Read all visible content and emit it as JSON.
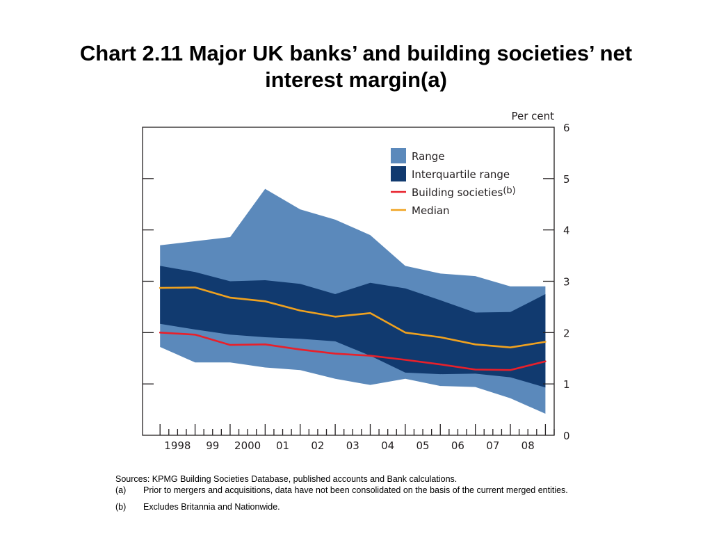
{
  "title_line1": "Chart 2.11  Major UK banks’ and building societies’ net",
  "title_line2": "interest margin(a)",
  "notes": {
    "sources": "Sources:  KPMG Building Societies Database, published accounts and Bank calculations.",
    "a_mark": "(a)",
    "a_text": "Prior to mergers and acquisitions, data have not been consolidated on the basis of the current merged entities.",
    "b_mark": "(b)",
    "b_text": "Excludes Britannia and Nationwide."
  },
  "chart_data": {
    "type": "area",
    "ylabel": "Per cent",
    "ylim": [
      0,
      6
    ],
    "yticks": [
      "0",
      "1",
      "2",
      "3",
      "4",
      "5",
      "6"
    ],
    "xlim": [
      1997.5,
      2009.25
    ],
    "x_tick_labels": [
      {
        "x": 1998,
        "label": "1998"
      },
      {
        "x": 1999,
        "label": "99"
      },
      {
        "x": 2000,
        "label": "2000"
      },
      {
        "x": 2001,
        "label": "01"
      },
      {
        "x": 2002,
        "label": "02"
      },
      {
        "x": 2003,
        "label": "03"
      },
      {
        "x": 2004,
        "label": "04"
      },
      {
        "x": 2005,
        "label": "05"
      },
      {
        "x": 2006,
        "label": "06"
      },
      {
        "x": 2007,
        "label": "07"
      },
      {
        "x": 2008,
        "label": "08"
      }
    ],
    "x": [
      1998.0,
      1999.0,
      2000.0,
      2001.0,
      2002.0,
      2003.0,
      2004.0,
      2005.0,
      2006.0,
      2007.0,
      2008.0,
      2009.0
    ],
    "legend_position": "top-right",
    "series": [
      {
        "name": "Range",
        "kind": "band",
        "color": "#5b89bb",
        "upper": [
          3.7,
          3.78,
          3.86,
          4.8,
          4.4,
          4.2,
          3.9,
          3.3,
          3.15,
          3.1,
          2.9,
          2.9
        ],
        "lower": [
          1.72,
          1.42,
          1.42,
          1.32,
          1.27,
          1.1,
          0.98,
          1.1,
          0.96,
          0.94,
          0.72,
          0.42
        ]
      },
      {
        "name": "Interquartile range",
        "kind": "band",
        "color": "#113a6f",
        "upper": [
          3.3,
          3.18,
          3.0,
          3.02,
          2.95,
          2.75,
          2.97,
          2.86,
          2.63,
          2.39,
          2.4,
          2.75
        ],
        "lower": [
          2.17,
          2.06,
          1.96,
          1.91,
          1.88,
          1.83,
          1.55,
          1.22,
          1.19,
          1.2,
          1.13,
          0.93
        ]
      },
      {
        "name": "Building societies",
        "name_suffix": "(b)",
        "kind": "line",
        "color": "#e8202a",
        "values": [
          2.0,
          1.96,
          1.76,
          1.77,
          1.67,
          1.59,
          1.55,
          1.47,
          1.38,
          1.28,
          1.27,
          1.44
        ]
      },
      {
        "name": "Median",
        "kind": "line",
        "color": "#f0a21f",
        "values": [
          2.87,
          2.88,
          2.68,
          2.61,
          2.43,
          2.31,
          2.38,
          2.0,
          1.91,
          1.77,
          1.71,
          1.82
        ]
      }
    ]
  }
}
